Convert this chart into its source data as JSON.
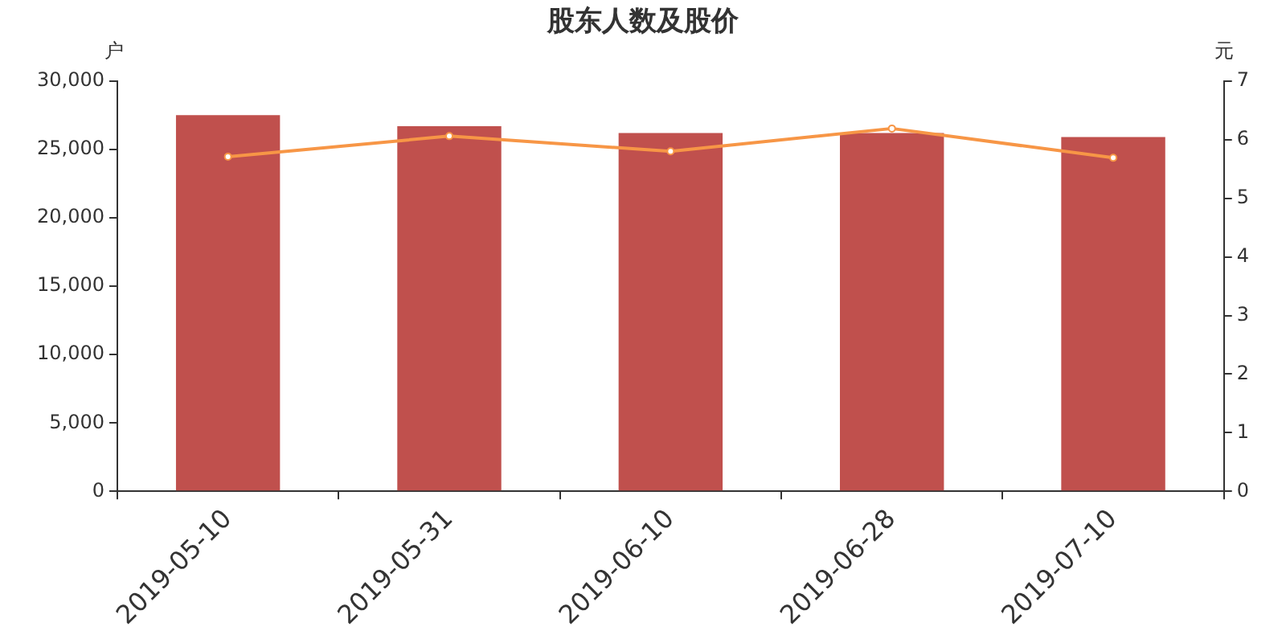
{
  "chart_data": {
    "type": "bar",
    "title": "股东人数及股价",
    "ylabel": "户",
    "y2label": "元",
    "categories": [
      "2019-05-10",
      "2019-05-31",
      "2019-06-10",
      "2019-06-28",
      "2019-07-10"
    ],
    "series": [
      {
        "color": "#c0504d",
        "values": [
          27500,
          26700,
          26200,
          26200,
          25900
        ]
      },
      {
        "type": "line",
        "axis": "y2",
        "color": "#f79646",
        "marker": "circle",
        "values": [
          5.71,
          6.06,
          5.8,
          6.19,
          5.69
        ]
      }
    ],
    "ylim": [
      0,
      30000
    ],
    "yticks": [
      {
        "value": 0,
        "label": "0"
      },
      {
        "value": 5000,
        "label": "5,000"
      },
      {
        "value": 10000,
        "label": "10,000"
      },
      {
        "value": 15000,
        "label": "15,000"
      },
      {
        "value": 20000,
        "label": "20,000"
      },
      {
        "value": 25000,
        "label": "25,000"
      },
      {
        "value": 30000,
        "label": "30,000"
      }
    ],
    "y2lim": [
      0,
      7
    ],
    "y2ticks": [
      0,
      1,
      2,
      3,
      4,
      5,
      6,
      7
    ],
    "grid": false,
    "legend": false
  }
}
